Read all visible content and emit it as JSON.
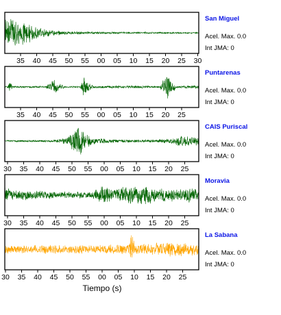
{
  "chart_data": [
    {
      "type": "line",
      "station": "San Miguel",
      "color": "#006400",
      "info": {
        "acel_label": "Acel. Max. 0.0",
        "int_label": "Int JMA: 0"
      },
      "ticks": [
        "35",
        "40",
        "45",
        "50",
        "55",
        "00",
        "05",
        "10",
        "15",
        "20",
        "25",
        "30"
      ],
      "seed": 11,
      "envelope": [
        [
          0,
          0.95
        ],
        [
          0.06,
          0.85
        ],
        [
          0.13,
          0.5
        ],
        [
          0.2,
          0.25
        ],
        [
          0.3,
          0.1
        ],
        [
          0.45,
          0.07
        ],
        [
          0.7,
          0.05
        ],
        [
          1,
          0.04
        ]
      ]
    },
    {
      "type": "line",
      "station": "Puntarenas",
      "color": "#006400",
      "info": {
        "acel_label": "Acel. Max. 0.0",
        "int_label": "Int JMA: 0"
      },
      "ticks": [
        "35",
        "40",
        "45",
        "50",
        "55",
        "00",
        "05",
        "10",
        "15",
        "20",
        "25"
      ],
      "seed": 23,
      "envelope": [
        [
          0,
          0.05
        ],
        [
          0.015,
          0.05
        ],
        [
          0.025,
          0.35
        ],
        [
          0.04,
          0.05
        ],
        [
          0.21,
          0.05
        ],
        [
          0.25,
          0.45
        ],
        [
          0.28,
          0.2
        ],
        [
          0.31,
          0.05
        ],
        [
          0.39,
          0.05
        ],
        [
          0.41,
          0.6
        ],
        [
          0.43,
          0.25
        ],
        [
          0.46,
          0.05
        ],
        [
          0.6,
          0.1
        ],
        [
          0.8,
          0.05
        ],
        [
          0.84,
          1.0
        ],
        [
          0.86,
          0.35
        ],
        [
          0.89,
          0.06
        ],
        [
          1,
          0.1
        ]
      ]
    },
    {
      "type": "line",
      "station": "CAIS Puriscal",
      "color": "#006400",
      "info": {
        "acel_label": "Acel. Max. 0.0",
        "int_label": "Int JMA: 0"
      },
      "ticks": [
        "30",
        "35",
        "40",
        "45",
        "50",
        "55",
        "00",
        "05",
        "10",
        "15",
        "20",
        "25"
      ],
      "seed": 37,
      "envelope": [
        [
          0,
          0.05
        ],
        [
          0.25,
          0.06
        ],
        [
          0.32,
          0.2
        ],
        [
          0.36,
          0.6
        ],
        [
          0.38,
          1.0
        ],
        [
          0.41,
          0.55
        ],
        [
          0.45,
          0.2
        ],
        [
          0.55,
          0.1
        ],
        [
          0.75,
          0.08
        ],
        [
          0.85,
          0.15
        ],
        [
          0.9,
          0.3
        ],
        [
          1,
          0.25
        ]
      ]
    },
    {
      "type": "line",
      "station": "Moravia",
      "color": "#006400",
      "info": {
        "acel_label": "Acel. Max. 0.0",
        "int_label": "Int JMA: 0"
      },
      "ticks": [
        "30",
        "35",
        "40",
        "45",
        "50",
        "55",
        "00",
        "05",
        "10",
        "15",
        "20",
        "25"
      ],
      "seed": 53,
      "envelope": [
        [
          0,
          0.6
        ],
        [
          0.03,
          0.3
        ],
        [
          0.15,
          0.25
        ],
        [
          0.3,
          0.2
        ],
        [
          0.45,
          0.2
        ],
        [
          0.52,
          0.6
        ],
        [
          0.55,
          0.4
        ],
        [
          0.6,
          0.5
        ],
        [
          0.7,
          0.55
        ],
        [
          0.8,
          0.45
        ],
        [
          0.9,
          0.3
        ],
        [
          0.97,
          0.5
        ],
        [
          1,
          0.3
        ]
      ]
    },
    {
      "type": "line",
      "station": "La Sabana",
      "color": "#ffa500",
      "info": {
        "acel_label": "Acel. Max. 0.0",
        "int_label": "Int JMA: 0"
      },
      "ticks": [
        "30",
        "35",
        "40",
        "45",
        "50",
        "55",
        "00",
        "05",
        "10",
        "15",
        "20",
        "25"
      ],
      "seed": 71,
      "envelope": [
        [
          0,
          0.25
        ],
        [
          0.3,
          0.25
        ],
        [
          0.5,
          0.25
        ],
        [
          0.64,
          0.3
        ],
        [
          0.655,
          1.0
        ],
        [
          0.67,
          0.3
        ],
        [
          0.75,
          0.35
        ],
        [
          0.85,
          0.4
        ],
        [
          0.95,
          0.35
        ],
        [
          1,
          0.3
        ]
      ]
    }
  ],
  "xlabel": "Tiempo (s)"
}
